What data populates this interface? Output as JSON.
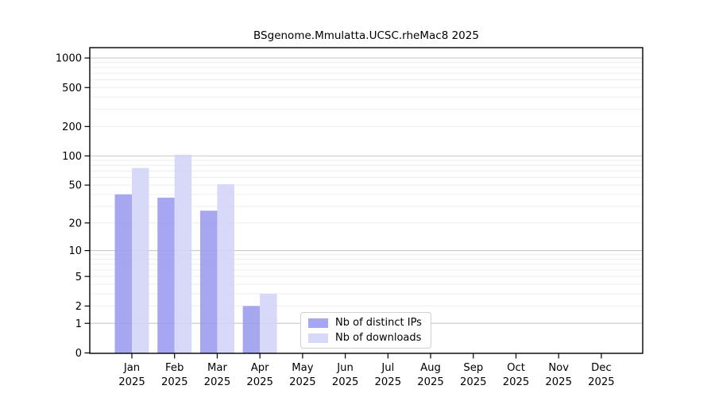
{
  "chart_data": {
    "type": "bar",
    "title": "BSgenome.Mmulatta.UCSC.rheMac8 2025",
    "categories": [
      "Jan",
      "Feb",
      "Mar",
      "Apr",
      "May",
      "Jun",
      "Jul",
      "Aug",
      "Sep",
      "Oct",
      "Nov",
      "Dec"
    ],
    "year_label": "2025",
    "series": [
      {
        "name": "Nb of distinct IPs",
        "color": "#9a9aef",
        "values": [
          40,
          37,
          27,
          2,
          0,
          0,
          0,
          0,
          0,
          0,
          0,
          0
        ]
      },
      {
        "name": "Nb of downloads",
        "color": "#d3d3f7",
        "values": [
          75,
          103,
          51,
          3,
          0,
          0,
          0,
          0,
          0,
          0,
          0,
          0
        ]
      }
    ],
    "yscale": "log1p",
    "ytick_labels": [
      0,
      1,
      2,
      5,
      10,
      20,
      50,
      100,
      200,
      500,
      1000
    ],
    "grid_major": [
      1,
      10,
      100,
      1000
    ],
    "ylim": [
      0,
      1280
    ],
    "grid": true,
    "legend_position": "inside-bottom-center",
    "colors": {
      "axis": "#000000",
      "grid_major": "#c9c9c9",
      "grid_minor": "#ededed",
      "text": "#000000",
      "background": "#ffffff"
    }
  }
}
